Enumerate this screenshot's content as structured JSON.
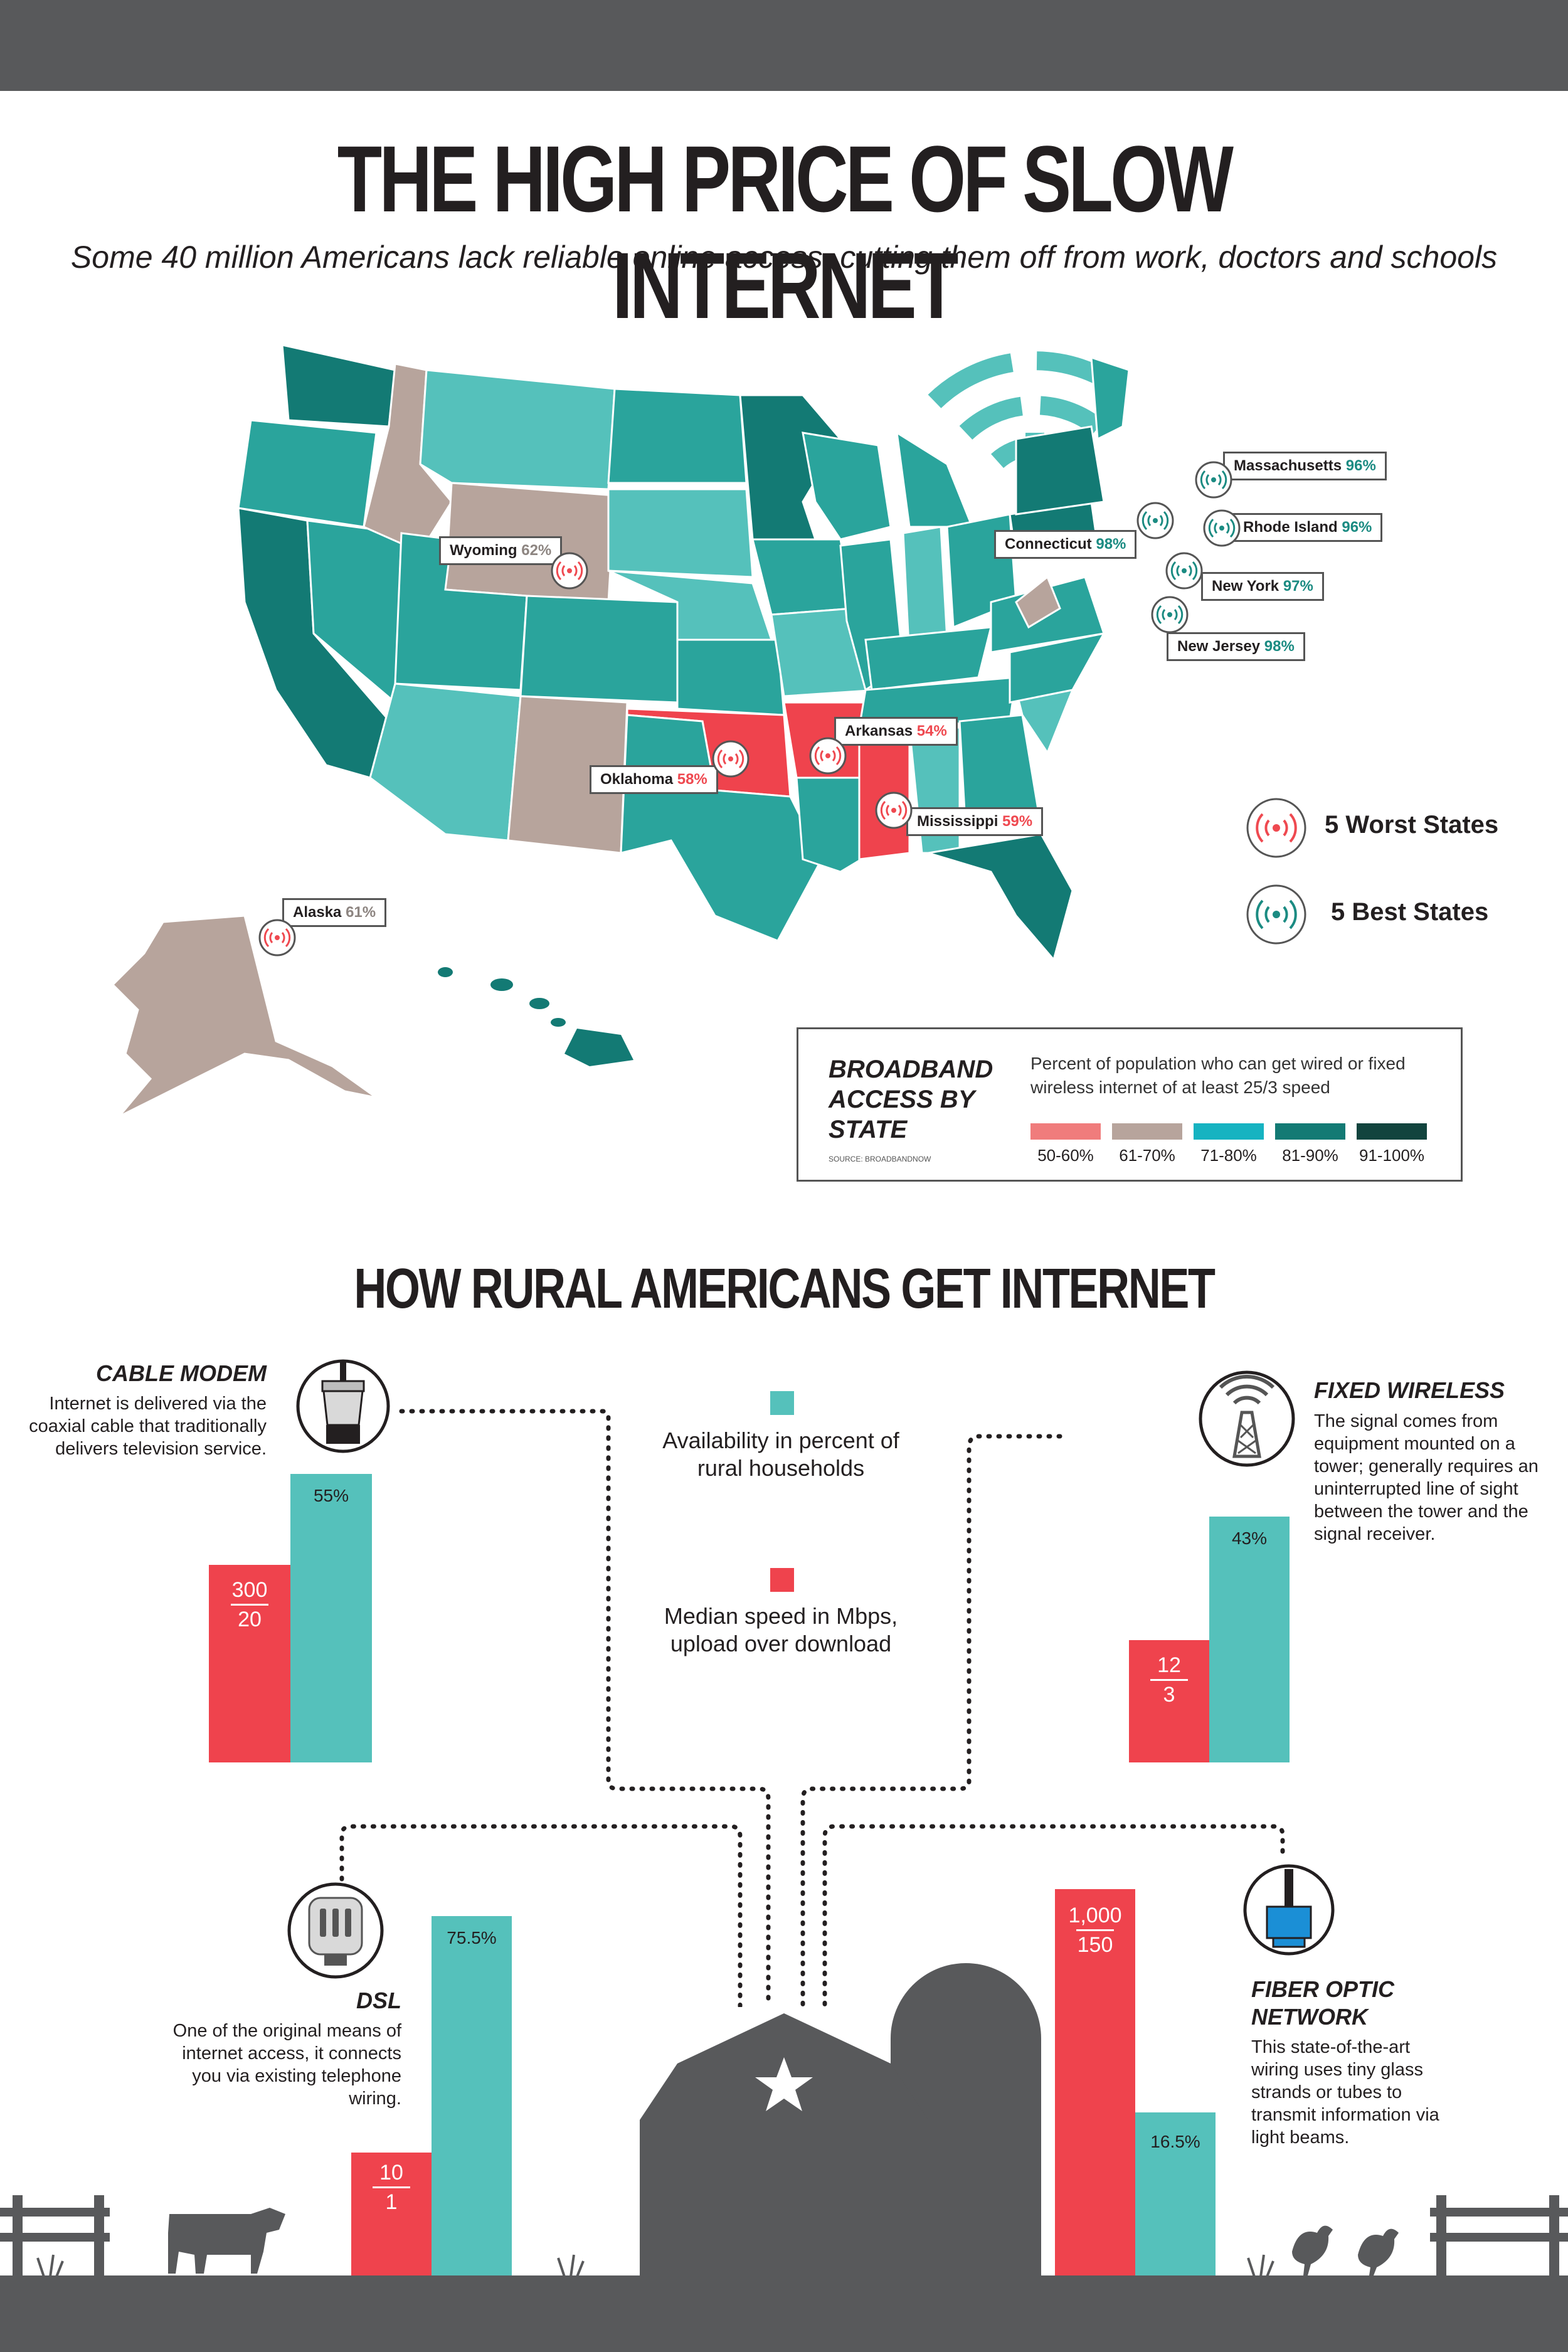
{
  "header": {
    "title": "THE HIGH PRICE OF SLOW INTERNET",
    "subtitle": "Some 40 million Americans lack reliable online access, cutting them off from work, doctors and schools"
  },
  "map": {
    "callouts": [
      {
        "state": "Wyoming",
        "pct": "62%",
        "group": "worst"
      },
      {
        "state": "Oklahoma",
        "pct": "58%",
        "group": "worst"
      },
      {
        "state": "Arkansas",
        "pct": "54%",
        "group": "worst"
      },
      {
        "state": "Mississippi",
        "pct": "59%",
        "group": "worst"
      },
      {
        "state": "Alaska",
        "pct": "61%",
        "group": "worst"
      },
      {
        "state": "Massachusetts",
        "pct": "96%",
        "group": "best"
      },
      {
        "state": "Connecticut",
        "pct": "98%",
        "group": "best"
      },
      {
        "state": "Rhode Island",
        "pct": "96%",
        "group": "best"
      },
      {
        "state": "New York",
        "pct": "97%",
        "group": "best"
      },
      {
        "state": "New Jersey",
        "pct": "98%",
        "group": "best"
      }
    ],
    "key": {
      "worst_label": "5 Worst States",
      "best_label": "5 Best States",
      "worst_color": "#ef4950",
      "best_color": "#1b8b82"
    }
  },
  "legend": {
    "title": "BROADBAND ACCESS BY STATE",
    "source": "SOURCE: BROADBANDNOW",
    "description": "Percent of population who can get wired or fixed wireless internet of at least 25/3 speed",
    "bins": [
      {
        "label": "50-60%",
        "color": "#f07c7c"
      },
      {
        "label": "61-70%",
        "color": "#b7a49c"
      },
      {
        "label": "71-80%",
        "color": "#16b3c1"
      },
      {
        "label": "81-90%",
        "color": "#137a74"
      },
      {
        "label": "91-100%",
        "color": "#12443e"
      }
    ]
  },
  "rural": {
    "title": "HOW RURAL AMERICANS GET INTERNET",
    "key": {
      "availability": "Availability in percent of rural households",
      "speed": "Median speed in Mbps, upload over download",
      "availability_color": "#55c1bb",
      "speed_color": "#ef434d"
    },
    "methods": [
      {
        "id": "cable",
        "title": "CABLE MODEM",
        "text": "Internet is delivered via the coaxial cable that traditionally delivers television service.",
        "availability": "55%",
        "availability_value": 55,
        "download": "300",
        "upload": "20"
      },
      {
        "id": "fixed",
        "title": "FIXED WIRELESS",
        "text": "The signal comes from equipment mounted on a tower; generally requires an uninterrupted line of sight between the tower and the signal receiver.",
        "availability": "43%",
        "availability_value": 43,
        "download": "12",
        "upload": "3"
      },
      {
        "id": "dsl",
        "title": "DSL",
        "text": "One of the original means of internet access, it connects you via existing telephone wiring.",
        "availability": "75.5%",
        "availability_value": 75.5,
        "download": "10",
        "upload": "1"
      },
      {
        "id": "fiber",
        "title": "FIBER OPTIC NETWORK",
        "text": "This state-of-the-art wiring uses tiny glass strands or tubes to transmit information via light beams.",
        "availability": "16.5%",
        "availability_value": 16.5,
        "download": "1,000",
        "upload": "150"
      }
    ]
  },
  "icons": [
    "wifi-icon",
    "coaxial-plug-icon",
    "tower-icon",
    "phone-jack-icon",
    "fiber-connector-icon",
    "barn-icon",
    "silo-icon",
    "cow-icon",
    "chicken-icon",
    "fence-icon",
    "star-icon"
  ]
}
